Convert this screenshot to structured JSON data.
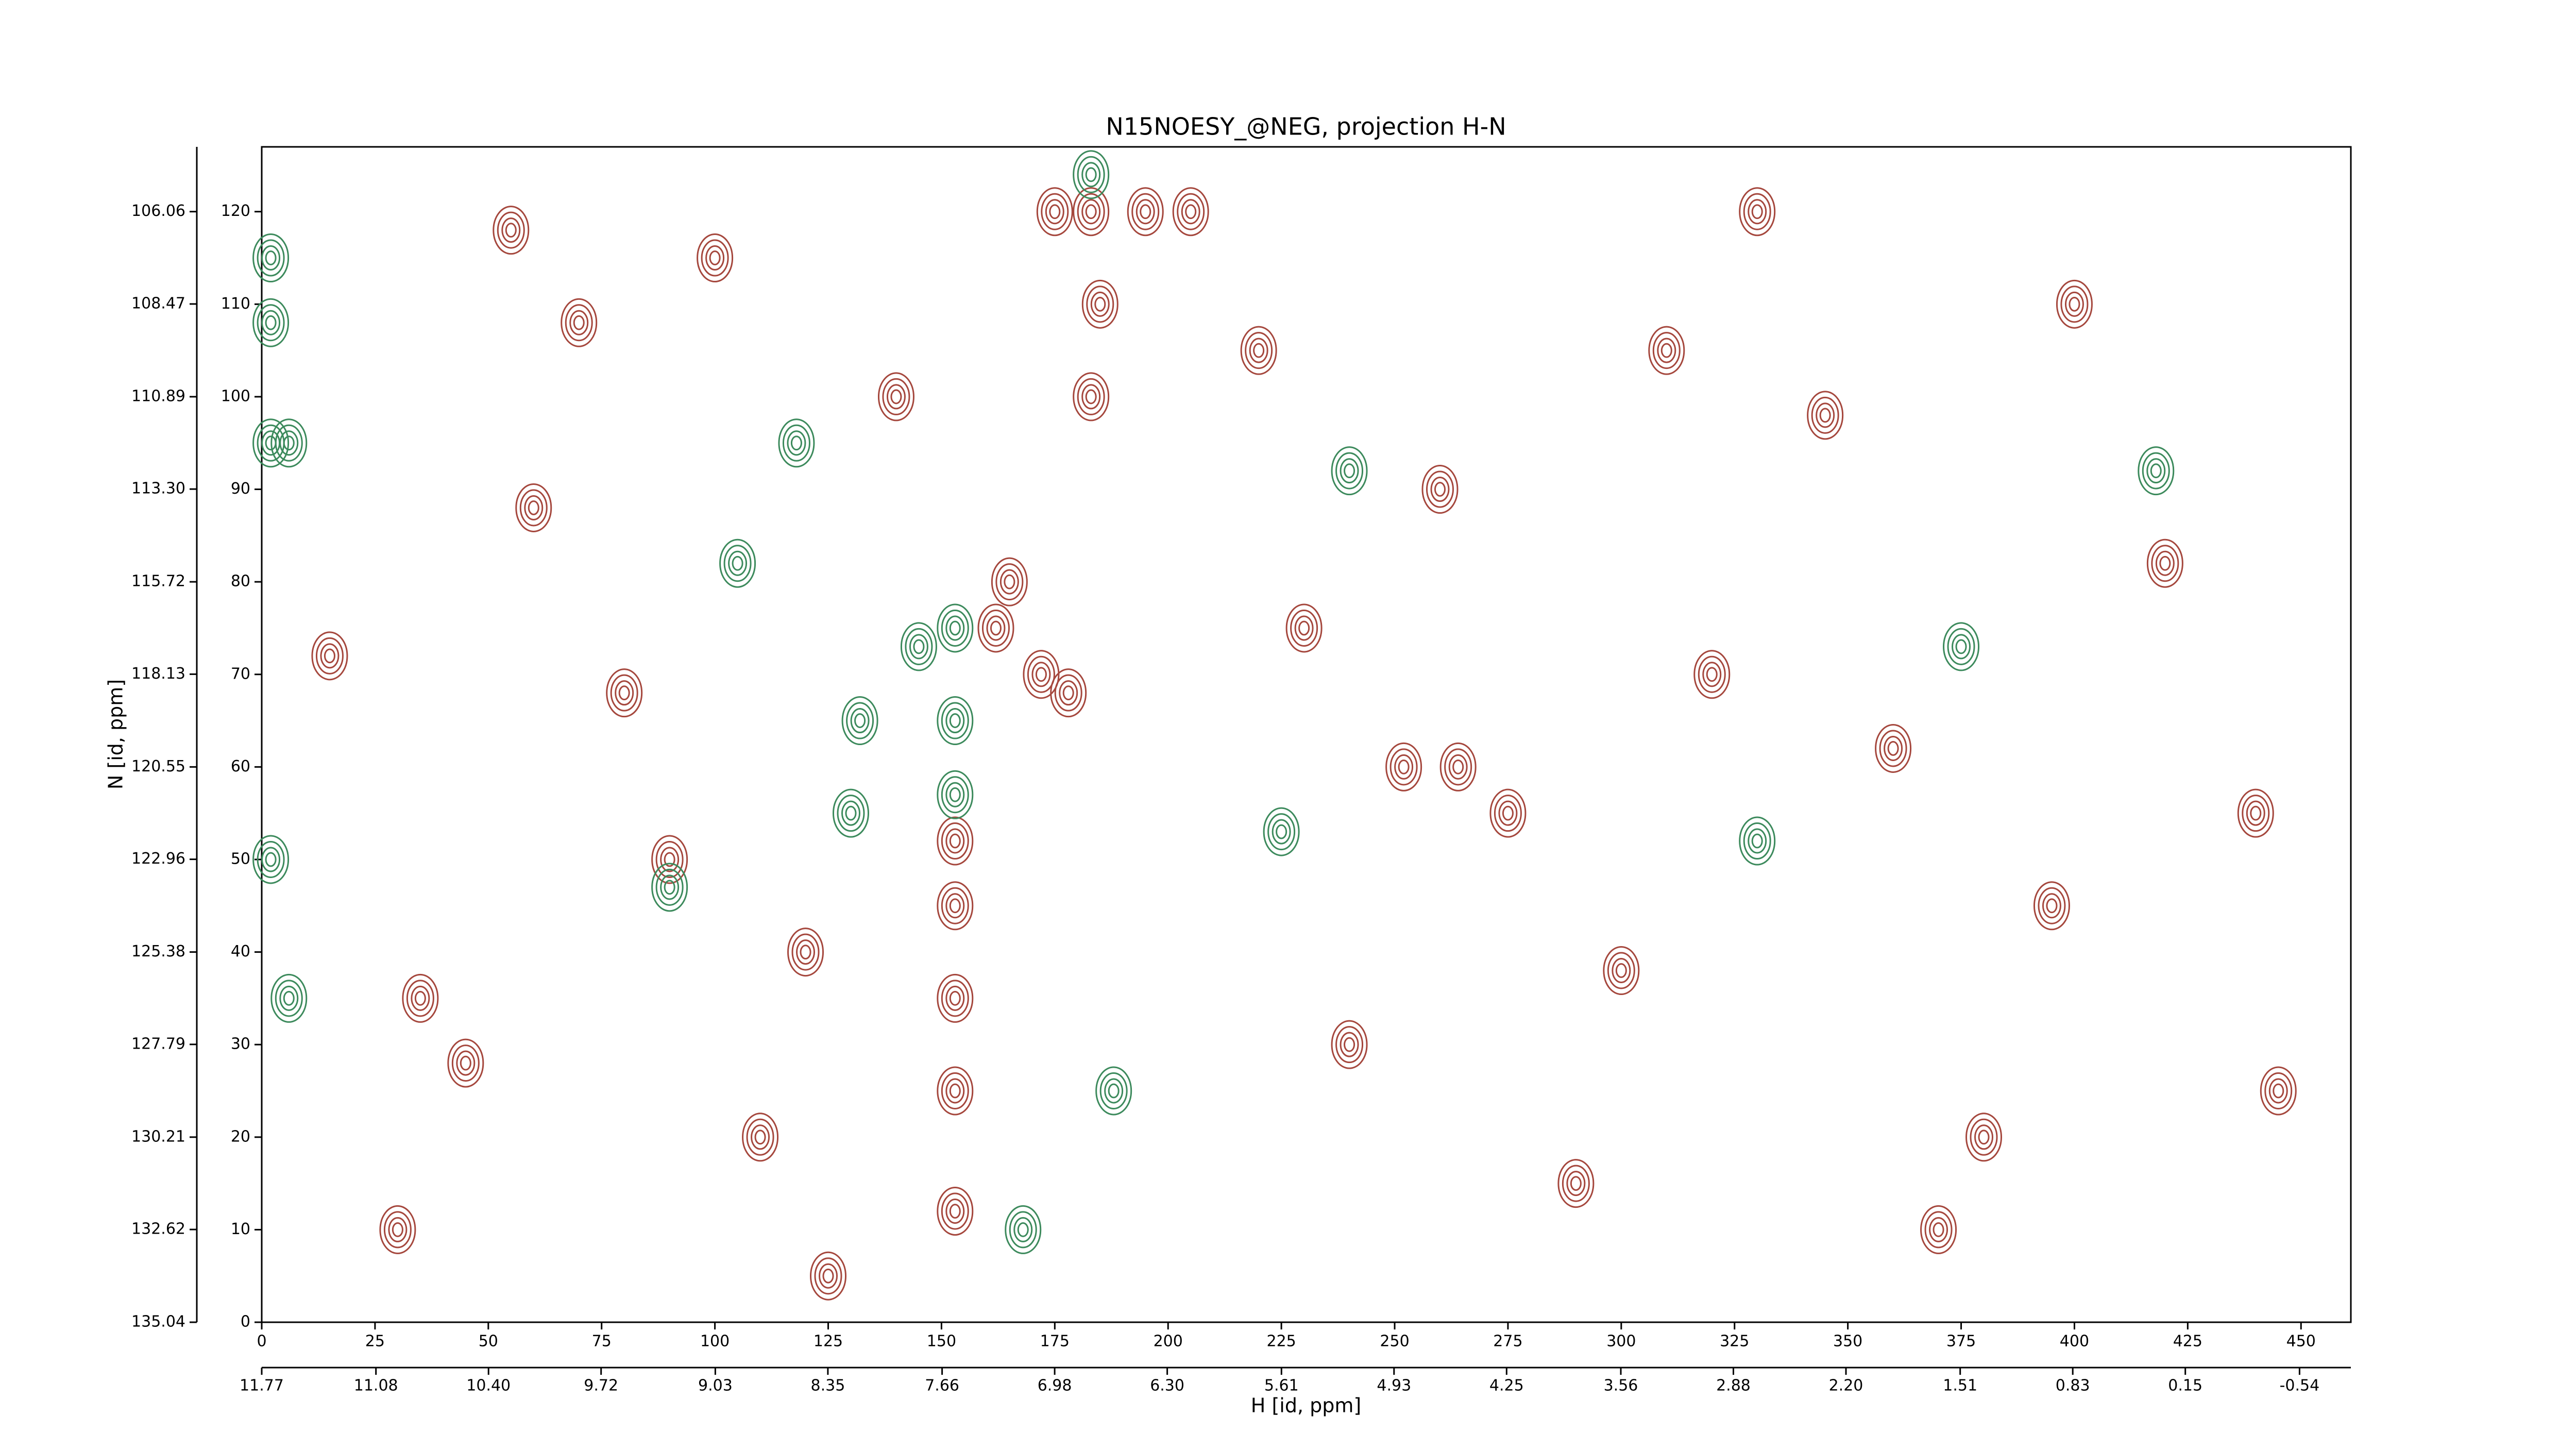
{
  "chart_data": {
    "type": "contour",
    "title": "N15NOESY_@NEG, projection H-N",
    "xlabel": "H [id, ppm]",
    "ylabel": "N [id, ppm]",
    "xlim": [
      0,
      461
    ],
    "xticks": [
      0,
      25,
      50,
      75,
      100,
      125,
      150,
      175,
      200,
      225,
      250,
      275,
      300,
      325,
      350,
      375,
      400,
      425,
      450
    ],
    "ylim": [
      0,
      127
    ],
    "yticks": [
      0,
      10,
      20,
      30,
      40,
      50,
      60,
      70,
      80,
      90,
      100,
      110,
      120
    ],
    "ppm_xlim": [
      11.77,
      -0.85
    ],
    "ppm_xticks": [
      11.77,
      11.08,
      {
        "value": 10.4,
        "label": "10.40"
      },
      9.72,
      9.03,
      8.35,
      7.66,
      6.98,
      {
        "value": 6.3,
        "label": "6.30"
      },
      5.61,
      4.93,
      4.25,
      3.56,
      2.88,
      {
        "value": 2.2,
        "label": "2.20"
      },
      1.51,
      0.83,
      0.15,
      -0.54
    ],
    "ppm_ylim": [
      135.04,
      104.37
    ],
    "ppm_yticks": [
      106.06,
      108.47,
      110.89,
      {
        "value": 113.3,
        "label": "113.30"
      },
      115.72,
      118.13,
      120.55,
      122.96,
      125.38,
      127.79,
      130.21,
      132.62,
      135.04
    ],
    "series": [
      {
        "color": "#a5473d",
        "x": [
          183,
          175,
          195,
          205,
          185,
          183,
          165,
          162,
          172,
          178,
          153,
          153,
          153,
          153,
          153,
          264,
          252,
          275,
          300,
          35,
          60,
          90,
          110,
          220,
          240,
          290,
          320,
          345,
          370,
          395,
          420,
          445,
          30,
          55,
          80,
          120,
          140,
          100,
          330,
          360,
          400,
          440,
          230,
          260,
          310,
          380,
          125,
          15,
          45,
          70
        ],
        "values": [
          120,
          120,
          120,
          120,
          110,
          100,
          80,
          75,
          70,
          68,
          52,
          45,
          35,
          25,
          12,
          60,
          60,
          55,
          38,
          35,
          88,
          50,
          20,
          105,
          30,
          15,
          70,
          98,
          10,
          45,
          82,
          25,
          10,
          118,
          68,
          40,
          100,
          115,
          120,
          62,
          110,
          55,
          75,
          90,
          105,
          20,
          5,
          72,
          28,
          108
        ]
      },
      {
        "color": "#3c8a5c",
        "x": [
          153,
          153,
          153,
          2,
          2,
          2,
          6,
          2,
          6,
          225,
          118,
          132,
          145,
          130,
          240,
          188,
          330,
          375,
          418,
          168,
          183,
          105,
          90
        ],
        "values": [
          75,
          65,
          57,
          115,
          108,
          95,
          95,
          50,
          35,
          53,
          95,
          65,
          73,
          55,
          92,
          25,
          52,
          73,
          92,
          10,
          124,
          82,
          47
        ]
      }
    ]
  }
}
